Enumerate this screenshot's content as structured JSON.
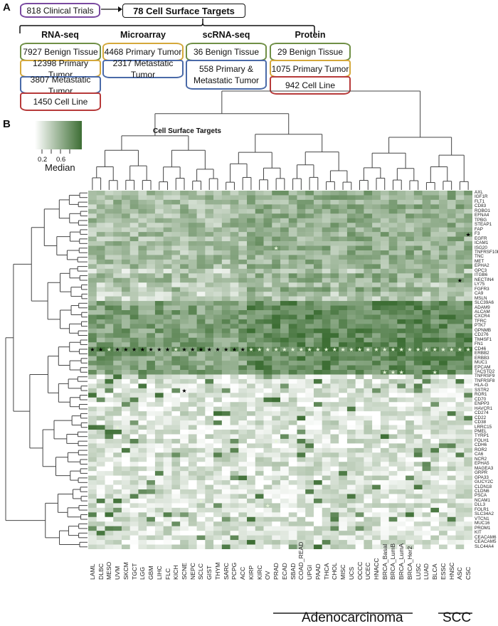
{
  "panel_a": {
    "letter": "A",
    "source": {
      "label": "818 Clinical Trials",
      "color": "#7a4aa0"
    },
    "target": {
      "label": "78 Cell Surface Targets"
    },
    "columns": [
      {
        "title": "RNA-seq",
        "items": [
          {
            "label": "7927 Benign Tissue",
            "color": "green"
          },
          {
            "label": "12398 Primary Tumor",
            "color": "yellow"
          },
          {
            "label": "3807 Metastatic Tumor",
            "color": "blue"
          },
          {
            "label": "1450 Cell Line",
            "color": "red"
          }
        ]
      },
      {
        "title": "Microarray",
        "items": [
          {
            "label": "4468 Primary Tumor",
            "color": "yellow"
          },
          {
            "label": "2317 Metastatic Tumor",
            "color": "blue"
          }
        ]
      },
      {
        "title": "scRNA-seq",
        "items": [
          {
            "label": "36 Benign Tissue",
            "color": "green"
          },
          {
            "label": "558 Primary & Metastatic Tumor",
            "color": "blue"
          }
        ]
      },
      {
        "title": "Protein",
        "items": [
          {
            "label": "29 Benign Tissue",
            "color": "green"
          },
          {
            "label": "1075 Primary Tumor",
            "color": "yellow"
          },
          {
            "label": "942 Cell Line",
            "color": "red"
          }
        ]
      }
    ]
  },
  "panel_b": {
    "letter": "B",
    "title": "Cell Surface Targets",
    "legend": {
      "label": "Median",
      "ticks": [
        "0.2",
        "0.6"
      ],
      "low_color": "#ffffff",
      "high_color": "#3d6e34"
    },
    "group_labels": [
      {
        "label": "Adenocarcinoma"
      },
      {
        "label": "SCC"
      }
    ]
  },
  "chart_data": {
    "type": "heatmap",
    "title": "Cell Surface Targets",
    "colorbar": {
      "label": "Median",
      "range": [
        0,
        1
      ],
      "ticks": [
        0.2,
        0.6
      ],
      "colors": [
        "#ffffff",
        "#3d6e34"
      ]
    },
    "columns": [
      "LAML",
      "DLBC",
      "MESO",
      "UVM",
      "SKCM",
      "TGCT",
      "LGG",
      "GBM",
      "LIHC",
      "FLC",
      "KICH",
      "SCNE",
      "NEPC",
      "SCLC",
      "GIST",
      "THYM",
      "SARC",
      "PCPG",
      "ACC",
      "KIRP",
      "KIRC",
      "OV",
      "PRAD",
      "ECAD",
      "SBAD",
      "COAD_READ",
      "UPGI",
      "PAAD",
      "THCA",
      "CHOL",
      "MISC",
      "UCS",
      "OCCC",
      "UCEC",
      "HNACC",
      "BRCA_Basal",
      "BRCA_LumB",
      "BRCA_LumA",
      "BRCA_Her2",
      "LUSC",
      "LUAD",
      "BLCA",
      "ESSC",
      "HNSC",
      "ASC",
      "CSC"
    ],
    "rows": [
      "AXL",
      "IGF1R",
      "FLT1",
      "CD83",
      "ROBO1",
      "EFNA4",
      "TPBG",
      "STEAP1",
      "FAP",
      "F3",
      "EGFR",
      "ICAM1",
      "ISG20",
      "TNFRSF10B",
      "TNC",
      "MET",
      "EPHA2",
      "GPC3",
      "ITGB6",
      "NECTIN4",
      "LY75",
      "FGFR3",
      "CA9",
      "MSLN",
      "SLC39A6",
      "ADAM9",
      "ALCAM",
      "CXCR4",
      "TFRC",
      "PTK7",
      "GPNMB",
      "CD276",
      "TM4SF1",
      "FN1",
      "CD46",
      "ERBB2",
      "ERBB3",
      "MUC1",
      "EPCAM",
      "TACSTD2",
      "TNFRSF9",
      "TNFRSF8",
      "HLA-G",
      "SSTR2",
      "ROR1",
      "CD70",
      "ENPP3",
      "HAVCR1",
      "CD274",
      "CD22",
      "CD38",
      "LRRC15",
      "PMEL",
      "TYRP1",
      "FOLH1",
      "CDH6",
      "ROR2",
      "CA6",
      "NCR2",
      "EPHA5",
      "MAGEA3",
      "GRPR",
      "GPA33",
      "GUCY2C",
      "CLDN18",
      "CLDN6",
      "PSCA",
      "NCAM1",
      "DLL3",
      "FOLR1",
      "SLC34A2",
      "VTCN1",
      "MUC16",
      "PROM1",
      "KIT",
      "CEACAM6",
      "CEACAM5",
      "SLC44A4"
    ],
    "groups": [
      {
        "label": "Adenocarcinoma",
        "columns": [
          "PRAD",
          "ECAD",
          "SBAD",
          "COAD_READ",
          "UPGI",
          "PAAD",
          "THCA",
          "CHOL",
          "MISC",
          "UCS",
          "OCCC",
          "UCEC",
          "HNACC",
          "BRCA_Basal",
          "BRCA_LumB",
          "BRCA_LumA",
          "BRCA_Her2"
        ]
      },
      {
        "label": "SCC",
        "columns": [
          "ESSC",
          "HNSC",
          "ASC",
          "CSC"
        ]
      }
    ],
    "row_blocks_median": [
      {
        "rows": "AXL–MSLN",
        "approx_level": 0.5
      },
      {
        "rows": "SLC39A6–TACSTD2",
        "approx_level": 0.75
      },
      {
        "rows": "TNFRSF9–SLC44A4",
        "approx_level": 0.2
      }
    ],
    "annotations": {
      "stars_row": "CD46",
      "star_black_columns": [
        "LAML",
        "DLBC",
        "UVM",
        "SKCM",
        "TGCT",
        "LGG",
        "GBM",
        "LIHC",
        "FLC",
        "SCNE",
        "NEPC",
        "SCLC",
        "GIST",
        "THYM",
        "SARC",
        "PCPG",
        "ACC"
      ],
      "star_white_columns": [
        "MESO",
        "KICH",
        "KIRP",
        "KIRC",
        "OV",
        "PRAD",
        "ECAD",
        "SBAD",
        "COAD_READ",
        "UPGI",
        "PAAD",
        "THCA",
        "CHOL",
        "MISC",
        "UCS",
        "OCCC",
        "UCEC",
        "HNACC",
        "BRCA_Basal",
        "BRCA_LumB",
        "BRCA_LumA",
        "BRCA_Her2",
        "LUSC",
        "LUAD",
        "BLCA",
        "ESSC",
        "HNSC",
        "ASC",
        "CSC"
      ],
      "other_stars": [
        {
          "row": "F3",
          "column": "CSC",
          "color": "black"
        },
        {
          "row": "ISG20",
          "column": "PRAD",
          "color": "white"
        },
        {
          "row": "NECTIN4",
          "column": "ASC",
          "color": "black"
        },
        {
          "row": "TACSTD2",
          "column": "BRCA_Basal",
          "color": "white"
        },
        {
          "row": "TACSTD2",
          "column": "BRCA_LumB",
          "color": "white"
        },
        {
          "row": "TACSTD2",
          "column": "BRCA_LumA",
          "color": "white"
        },
        {
          "row": "TACSTD2",
          "column": "BLCA",
          "color": "white"
        },
        {
          "row": "SSTR2",
          "column": "SCNE",
          "color": "black"
        },
        {
          "row": "LRRC15",
          "column": "UVM",
          "color": "white"
        },
        {
          "row": "FOLH1",
          "column": "PRAD",
          "color": "white"
        },
        {
          "row": "NCAM1",
          "column": "SCLC",
          "color": "white"
        },
        {
          "row": "DLL3",
          "column": "OV",
          "color": "white"
        }
      ]
    }
  }
}
